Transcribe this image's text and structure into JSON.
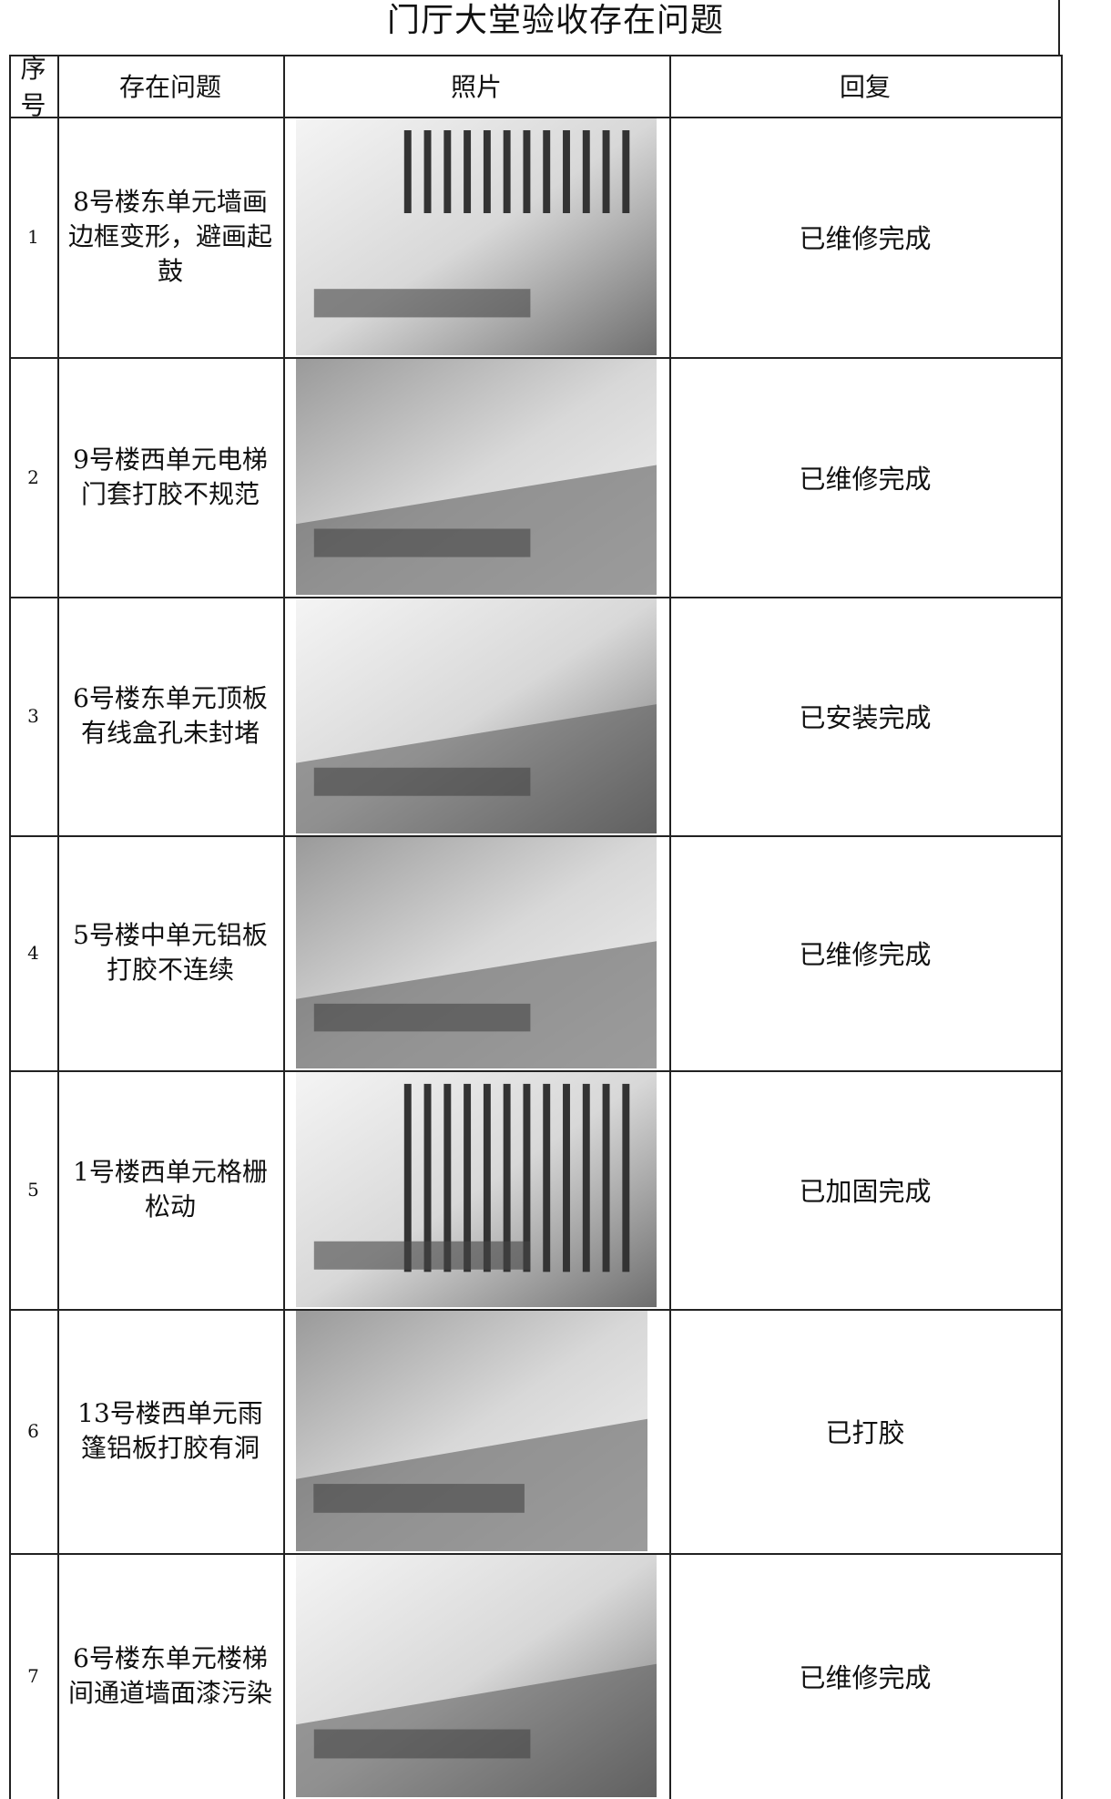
{
  "header": {
    "title": "门厅大堂验收存在问题"
  },
  "table": {
    "columns": [
      "序号",
      "存在问题",
      "照片",
      "回复"
    ],
    "rows": [
      [
        "1",
        "8号楼东单元墙画边框变形，避画起鼓",
        "已维修完成"
      ],
      [
        "2",
        "9号楼西单元电梯门套打胶不规范",
        "已维修完成"
      ],
      [
        "3",
        "6号楼东单元顶板有线盒孔未封堵",
        "已安装完成"
      ],
      [
        "4",
        "5号楼中单元铝板打胶不连续",
        "已维修完成"
      ],
      [
        "5",
        "1号楼西单元格栅松动",
        "已加固完成"
      ],
      [
        "6",
        "13号楼西单元雨篷铝板打胶有洞",
        "已打胶"
      ],
      [
        "7",
        "6号楼东单元楼梯间通道墙面漆污染",
        "已维修完成"
      ]
    ]
  }
}
